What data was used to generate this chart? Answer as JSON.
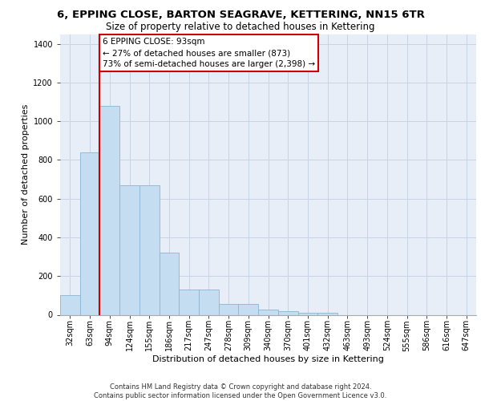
{
  "title1": "6, EPPING CLOSE, BARTON SEAGRAVE, KETTERING, NN15 6TR",
  "title2": "Size of property relative to detached houses in Kettering",
  "xlabel": "Distribution of detached houses by size in Kettering",
  "ylabel": "Number of detached properties",
  "footer1": "Contains HM Land Registry data © Crown copyright and database right 2024.",
  "footer2": "Contains public sector information licensed under the Open Government Licence v3.0.",
  "categories": [
    "32sqm",
    "63sqm",
    "94sqm",
    "124sqm",
    "155sqm",
    "186sqm",
    "217sqm",
    "247sqm",
    "278sqm",
    "309sqm",
    "340sqm",
    "370sqm",
    "401sqm",
    "432sqm",
    "463sqm",
    "493sqm",
    "524sqm",
    "555sqm",
    "586sqm",
    "616sqm",
    "647sqm"
  ],
  "values": [
    100,
    840,
    1080,
    670,
    670,
    320,
    130,
    130,
    55,
    55,
    28,
    18,
    12,
    10,
    0,
    0,
    0,
    0,
    0,
    0,
    0
  ],
  "bar_color": "#c5ddf0",
  "bar_edgecolor": "#8ab4d4",
  "vline_x_index": 2,
  "vline_color": "#cc0000",
  "annotation_text": "6 EPPING CLOSE: 93sqm\n← 27% of detached houses are smaller (873)\n73% of semi-detached houses are larger (2,398) →",
  "annotation_box_facecolor": "white",
  "annotation_box_edgecolor": "#cc0000",
  "ylim": [
    0,
    1450
  ],
  "yticks": [
    0,
    200,
    400,
    600,
    800,
    1000,
    1200,
    1400
  ],
  "grid_color": "#c8d4e4",
  "bg_color": "#e8eef8",
  "title1_fontsize": 9.5,
  "title2_fontsize": 8.5,
  "ylabel_fontsize": 8,
  "xlabel_fontsize": 8,
  "tick_fontsize": 7,
  "annot_fontsize": 7.5,
  "footer_fontsize": 6.0
}
